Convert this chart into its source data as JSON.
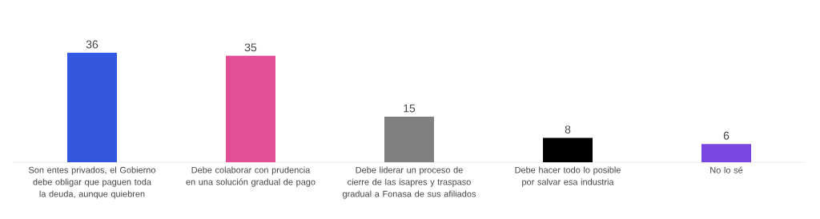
{
  "chart_data": {
    "type": "bar",
    "categories": [
      "Son entes privados, el Gobierno debe obligar que paguen toda la deuda, aunque quiebren",
      "Debe colaborar con prudencia en una solución gradual de pago",
      "Debe liderar un proceso de cierre de las isapres y traspaso gradual a Fonasa de sus afiliados",
      "Debe hacer todo lo posible por salvar esa industria",
      "No lo sé"
    ],
    "values": [
      36,
      35,
      15,
      8,
      6
    ],
    "colors": [
      "#3457e0",
      "#e24f97",
      "#808080",
      "#000000",
      "#7a45e0"
    ],
    "data_labels": true
  }
}
